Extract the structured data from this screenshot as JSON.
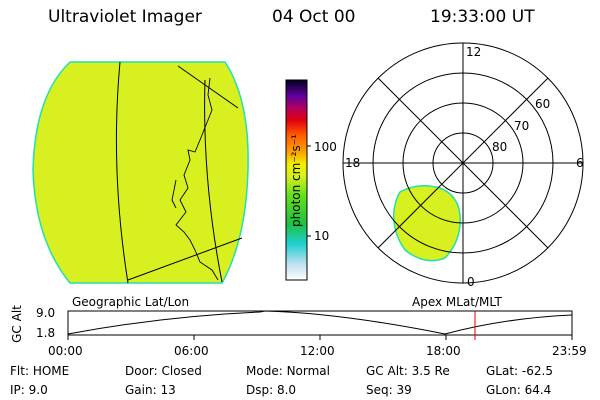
{
  "header": {
    "instrument": "Ultraviolet Imager",
    "date": "04 Oct 00",
    "time": "19:33:00 UT"
  },
  "colorbar": {
    "units": "photon cm⁻²s⁻¹",
    "ticks": [
      "100",
      "10"
    ]
  },
  "polar_plot": {
    "mlt_labels": [
      "12",
      "18",
      "6",
      "0"
    ],
    "lat_labels": [
      "60",
      "70",
      "80"
    ]
  },
  "panel_labels": {
    "left": "Geographic Lat/Lon",
    "right": "Apex MLat/MLT"
  },
  "altitude_plot": {
    "ylabel": "GC Alt",
    "yticks": [
      "9.0",
      "1.8"
    ],
    "xticks": [
      "00:00",
      "06:00",
      "12:00",
      "18:00",
      "23:59"
    ]
  },
  "status": {
    "row1": [
      {
        "label": "Flt:",
        "value": "HOME"
      },
      {
        "label": "Door:",
        "value": "Closed"
      },
      {
        "label": "Mode:",
        "value": "Normal"
      },
      {
        "label": "GC Alt:",
        "value": "3.5 Re"
      },
      {
        "label": "GLat:",
        "value": "-62.5"
      }
    ],
    "row2": [
      {
        "label": "IP:",
        "value": "9.0"
      },
      {
        "label": "Gain:",
        "value": "13"
      },
      {
        "label": "Dsp:",
        "value": "8.0"
      },
      {
        "label": "Seq:",
        "value": "39"
      },
      {
        "label": "GLon:",
        "value": "64.4"
      }
    ]
  },
  "colors": {
    "emission": "#d8f020",
    "emission_edge": "#20e0b0",
    "marker": "#e00000"
  }
}
